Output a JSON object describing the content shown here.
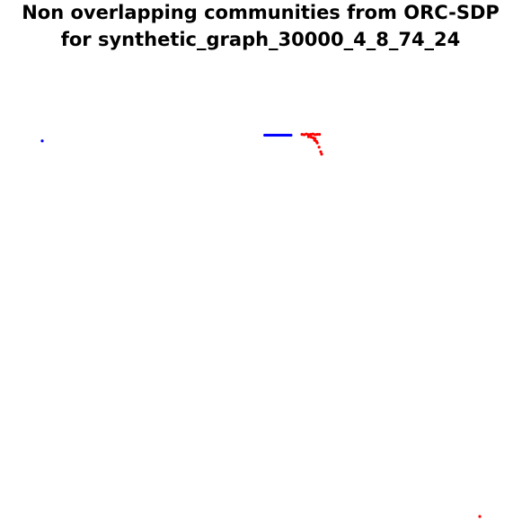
{
  "chart_data": {
    "type": "scatter",
    "title": {
      "line1": "Non overlapping communities from ORC-SDP",
      "line2": "for synthetic_graph_30000_4_8_74_24"
    },
    "xlabel": "",
    "ylabel": "",
    "axes_visible": false,
    "grid": false,
    "xlim": [
      0,
      1
    ],
    "ylim": [
      0,
      1
    ],
    "series": [
      {
        "name": "community-blue",
        "color": "#0000ff",
        "points": [
          [
            0.0,
            0.97
          ],
          [
            0.5086,
            0.985
          ],
          [
            0.5126,
            0.985
          ],
          [
            0.5166,
            0.985
          ],
          [
            0.5206,
            0.985
          ],
          [
            0.5246,
            0.985
          ],
          [
            0.5286,
            0.985
          ],
          [
            0.5326,
            0.985
          ],
          [
            0.5366,
            0.985
          ],
          [
            0.5406,
            0.985
          ],
          [
            0.5446,
            0.985
          ],
          [
            0.5486,
            0.985
          ],
          [
            0.5526,
            0.985
          ],
          [
            0.5566,
            0.985
          ],
          [
            0.5606,
            0.985
          ],
          [
            0.5646,
            0.985
          ],
          [
            0.5686,
            0.985
          ]
        ]
      },
      {
        "name": "community-red",
        "color": "#ff0000",
        "points": [
          [
            0.5936,
            0.987
          ],
          [
            0.5986,
            0.986
          ],
          [
            0.6036,
            0.988
          ],
          [
            0.6086,
            0.986
          ],
          [
            0.6136,
            0.987
          ],
          [
            0.6186,
            0.988
          ],
          [
            0.6236,
            0.986
          ],
          [
            0.6286,
            0.987
          ],
          [
            0.6336,
            0.987
          ],
          [
            0.6086,
            0.981
          ],
          [
            0.6146,
            0.98
          ],
          [
            0.6196,
            0.978
          ],
          [
            0.6236,
            0.976
          ],
          [
            0.6226,
            0.972
          ],
          [
            0.6266,
            0.969
          ],
          [
            0.6286,
            0.965
          ],
          [
            0.6326,
            0.954
          ],
          [
            0.6366,
            0.942
          ],
          [
            0.6386,
            0.936
          ],
          [
            1.0,
            0.0
          ]
        ]
      }
    ]
  }
}
